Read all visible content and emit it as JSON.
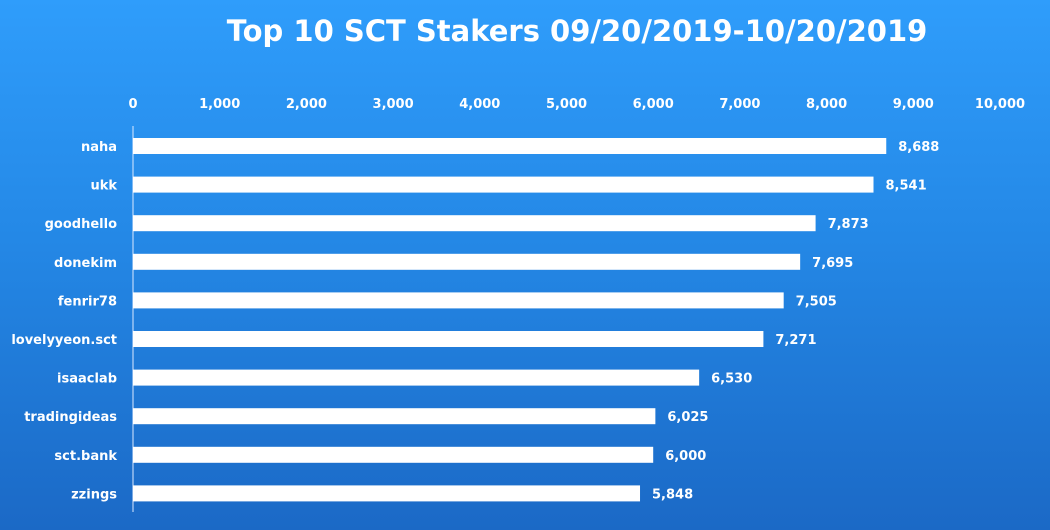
{
  "chart_data": {
    "type": "bar",
    "orientation": "horizontal",
    "title": "Top 10 SCT Stakers 09/20/2019-10/20/2019",
    "xlabel": "",
    "ylabel": "",
    "xlim": [
      0,
      10000
    ],
    "x_ticks": [
      0,
      1000,
      2000,
      3000,
      4000,
      5000,
      6000,
      7000,
      8000,
      9000,
      10000
    ],
    "x_tick_labels": [
      "0",
      "1,000",
      "2,000",
      "3,000",
      "4,000",
      "5,000",
      "6,000",
      "7,000",
      "8,000",
      "9,000",
      "10,000"
    ],
    "x_axis_position": "top",
    "grid": false,
    "legend": "none",
    "categories": [
      "naha",
      "ukk",
      "goodhello",
      "donekim",
      "fenrir78",
      "lovelyyeon.sct",
      "isaaclab",
      "tradingideas",
      "sct.bank",
      "zzings"
    ],
    "values": [
      8688,
      8541,
      7873,
      7695,
      7505,
      7271,
      6530,
      6025,
      6000,
      5848
    ],
    "value_labels": [
      "8,688",
      "8,541",
      "7,873",
      "7,695",
      "7,505",
      "7,271",
      "6,530",
      "6,025",
      "6,000",
      "5,848"
    ],
    "colors": {
      "bar": "#ffffff",
      "text": "#ffffff",
      "axis": "#dbe9ff"
    }
  }
}
